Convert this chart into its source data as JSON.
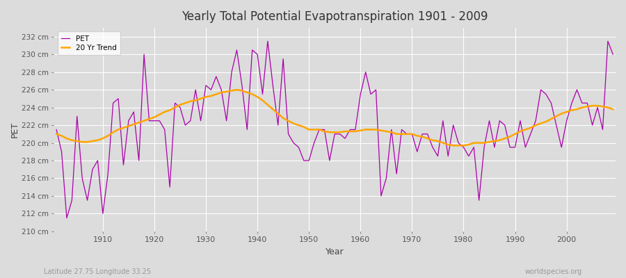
{
  "title": "Yearly Total Potential Evapotranspiration 1901 - 2009",
  "xlabel": "Year",
  "ylabel": "PET",
  "subtitle_left": "Latitude 27.75 Longitude 33.25",
  "subtitle_right": "worldspecies.org",
  "pet_color": "#AA00AA",
  "trend_color": "#FFA500",
  "background_color": "#DCDCDC",
  "plot_bg_color": "#DCDCDC",
  "ylim_min": 210,
  "ylim_max": 233,
  "ytick_step": 2,
  "years": [
    1901,
    1902,
    1903,
    1904,
    1905,
    1906,
    1907,
    1908,
    1909,
    1910,
    1911,
    1912,
    1913,
    1914,
    1915,
    1916,
    1917,
    1918,
    1919,
    1920,
    1921,
    1922,
    1923,
    1924,
    1925,
    1926,
    1927,
    1928,
    1929,
    1930,
    1931,
    1932,
    1933,
    1934,
    1935,
    1936,
    1937,
    1938,
    1939,
    1940,
    1941,
    1942,
    1943,
    1944,
    1945,
    1946,
    1947,
    1948,
    1949,
    1950,
    1951,
    1952,
    1953,
    1954,
    1955,
    1956,
    1957,
    1958,
    1959,
    1960,
    1961,
    1962,
    1963,
    1964,
    1965,
    1966,
    1967,
    1968,
    1969,
    1970,
    1971,
    1972,
    1973,
    1974,
    1975,
    1976,
    1977,
    1978,
    1979,
    1980,
    1981,
    1982,
    1983,
    1984,
    1985,
    1986,
    1987,
    1988,
    1989,
    1990,
    1991,
    1992,
    1993,
    1994,
    1995,
    1996,
    1997,
    1998,
    1999,
    2000,
    2001,
    2002,
    2003,
    2004,
    2005,
    2006,
    2007,
    2008,
    2009
  ],
  "pet_values": [
    221.5,
    219.0,
    211.5,
    213.5,
    223.0,
    216.0,
    213.5,
    217.0,
    218.0,
    212.0,
    216.5,
    224.5,
    225.0,
    217.5,
    222.5,
    223.5,
    218.0,
    230.0,
    222.5,
    222.5,
    222.5,
    221.5,
    215.0,
    224.5,
    224.0,
    222.0,
    222.5,
    226.0,
    222.5,
    226.5,
    226.0,
    227.5,
    226.0,
    222.5,
    228.0,
    230.5,
    226.5,
    221.5,
    230.5,
    230.0,
    225.5,
    231.5,
    226.5,
    222.0,
    229.5,
    221.0,
    220.0,
    219.5,
    218.0,
    218.0,
    220.0,
    221.5,
    221.5,
    218.0,
    221.0,
    221.0,
    220.5,
    221.5,
    221.5,
    225.5,
    228.0,
    225.5,
    226.0,
    214.0,
    216.0,
    221.5,
    216.5,
    221.5,
    221.0,
    221.0,
    219.0,
    221.0,
    221.0,
    219.5,
    218.5,
    222.5,
    218.5,
    222.0,
    220.0,
    219.5,
    218.5,
    219.5,
    213.5,
    219.5,
    222.5,
    219.5,
    222.5,
    222.0,
    219.5,
    219.5,
    222.5,
    219.5,
    221.0,
    222.5,
    226.0,
    225.5,
    224.5,
    222.0,
    219.5,
    222.5,
    224.5,
    226.0,
    224.5,
    224.5,
    222.0,
    224.0,
    221.5,
    231.5,
    230.0
  ],
  "trend_values": [
    221.0,
    220.8,
    220.5,
    220.3,
    220.2,
    220.1,
    220.1,
    220.2,
    220.3,
    220.5,
    220.8,
    221.2,
    221.5,
    221.7,
    221.9,
    222.1,
    222.3,
    222.5,
    222.7,
    222.9,
    223.2,
    223.5,
    223.7,
    224.0,
    224.3,
    224.5,
    224.7,
    224.8,
    225.0,
    225.2,
    225.3,
    225.5,
    225.7,
    225.8,
    225.9,
    226.0,
    225.9,
    225.7,
    225.5,
    225.2,
    224.8,
    224.3,
    223.8,
    223.3,
    222.8,
    222.5,
    222.2,
    222.0,
    221.8,
    221.5,
    221.5,
    221.5,
    221.3,
    221.2,
    221.2,
    221.2,
    221.3,
    221.3,
    221.3,
    221.4,
    221.5,
    221.5,
    221.5,
    221.4,
    221.3,
    221.2,
    221.0,
    221.0,
    221.0,
    221.0,
    220.8,
    220.7,
    220.5,
    220.3,
    220.2,
    220.0,
    219.8,
    219.7,
    219.7,
    219.7,
    219.8,
    220.0,
    220.0,
    220.0,
    220.1,
    220.2,
    220.3,
    220.5,
    220.7,
    221.0,
    221.3,
    221.5,
    221.7,
    222.0,
    222.2,
    222.4,
    222.7,
    223.0,
    223.3,
    223.5,
    223.7,
    223.8,
    224.0,
    224.1,
    224.2,
    224.2,
    224.1,
    224.0,
    223.8
  ]
}
